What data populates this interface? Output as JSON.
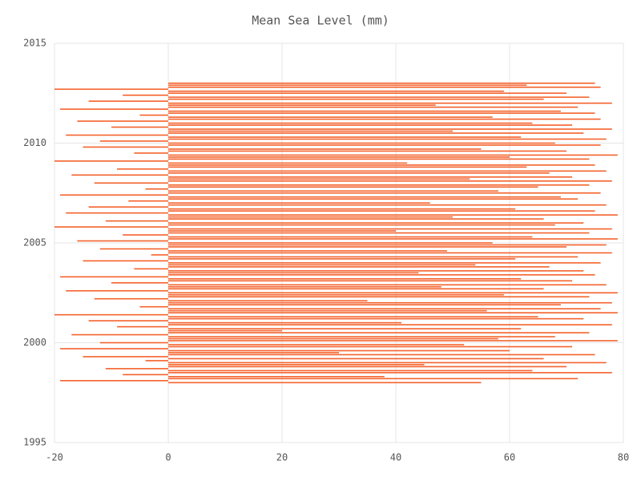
{
  "chart_data": {
    "type": "hbar",
    "title": "Mean Sea Level (mm)",
    "color": "#f4622c",
    "grid": true,
    "xlim": [
      -20,
      80
    ],
    "xticks": [
      -20,
      0,
      20,
      40,
      60,
      80
    ],
    "ylim": [
      1995,
      2015
    ],
    "yticks": [
      1995,
      2000,
      2005,
      2010,
      2015
    ],
    "dates": [
      1998.0,
      1998.1,
      1998.2,
      1998.3,
      1998.4,
      1998.5,
      1998.6,
      1998.7,
      1998.8,
      1998.9,
      1999.0,
      1999.1,
      1999.2,
      1999.3,
      1999.4,
      1999.5,
      1999.6,
      1999.7,
      1999.8,
      1999.9,
      2000.0,
      2000.1,
      2000.2,
      2000.3,
      2000.4,
      2000.5,
      2000.6,
      2000.7,
      2000.8,
      2000.9,
      2001.0,
      2001.1,
      2001.2,
      2001.3,
      2001.4,
      2001.5,
      2001.6,
      2001.7,
      2001.8,
      2001.9,
      2002.0,
      2002.1,
      2002.2,
      2002.3,
      2002.4,
      2002.5,
      2002.6,
      2002.7,
      2002.8,
      2002.9,
      2003.0,
      2003.1,
      2003.2,
      2003.3,
      2003.4,
      2003.5,
      2003.6,
      2003.7,
      2003.8,
      2003.9,
      2004.0,
      2004.1,
      2004.2,
      2004.3,
      2004.4,
      2004.5,
      2004.6,
      2004.7,
      2004.8,
      2004.9,
      2005.0,
      2005.1,
      2005.2,
      2005.3,
      2005.4,
      2005.5,
      2005.6,
      2005.7,
      2005.8,
      2005.9,
      2006.0,
      2006.1,
      2006.2,
      2006.3,
      2006.4,
      2006.5,
      2006.6,
      2006.7,
      2006.8,
      2006.9,
      2007.0,
      2007.1,
      2007.2,
      2007.3,
      2007.4,
      2007.5,
      2007.6,
      2007.7,
      2007.8,
      2007.9,
      2008.0,
      2008.1,
      2008.2,
      2008.3,
      2008.4,
      2008.5,
      2008.6,
      2008.7,
      2008.8,
      2008.9,
      2009.0,
      2009.1,
      2009.2,
      2009.3,
      2009.4,
      2009.5,
      2009.6,
      2009.7,
      2009.8,
      2009.9,
      2010.0,
      2010.1,
      2010.2,
      2010.3,
      2010.4,
      2010.5,
      2010.6,
      2010.7,
      2010.8,
      2010.9,
      2011.0,
      2011.1,
      2011.2,
      2011.3,
      2011.4,
      2011.5,
      2011.6,
      2011.7,
      2011.8,
      2011.9,
      2012.0,
      2012.1,
      2012.2,
      2012.3,
      2012.4,
      2012.5,
      2012.6,
      2012.7,
      2012.8,
      2012.9,
      2013.0
    ],
    "values": [
      55,
      -19,
      72,
      38,
      -8,
      78,
      64,
      -11,
      70,
      45,
      77,
      -4,
      66,
      -15,
      75,
      30,
      60,
      -19,
      71,
      52,
      -12,
      79,
      58,
      68,
      -17,
      74,
      20,
      62,
      -9,
      78,
      41,
      -14,
      73,
      65,
      -20,
      79,
      56,
      76,
      -5,
      69,
      78,
      35,
      -13,
      74,
      59,
      79,
      -18,
      66,
      48,
      77,
      -10,
      71,
      62,
      -19,
      75,
      44,
      73,
      -6,
      67,
      54,
      76,
      -15,
      61,
      72,
      -3,
      78,
      49,
      -12,
      70,
      77,
      57,
      -16,
      79,
      64,
      -8,
      74,
      40,
      78,
      -20,
      68,
      73,
      -11,
      66,
      50,
      79,
      -18,
      75,
      61,
      -14,
      77,
      46,
      -7,
      72,
      69,
      -19,
      76,
      58,
      -4,
      65,
      74,
      -13,
      78,
      53,
      71,
      -17,
      67,
      77,
      -9,
      63,
      75,
      42,
      -20,
      74,
      60,
      79,
      -6,
      70,
      55,
      -15,
      76,
      68,
      -12,
      77,
      62,
      -18,
      73,
      50,
      78,
      -10,
      71,
      64,
      -16,
      76,
      57,
      -5,
      75,
      69,
      -19,
      72,
      47,
      78,
      -14,
      66,
      74,
      -8,
      70,
      59,
      -20,
      76,
      63,
      75
    ]
  }
}
